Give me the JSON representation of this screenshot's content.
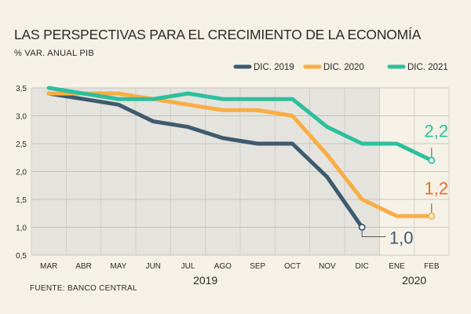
{
  "chart_data": {
    "type": "line",
    "title": "LAS PERSPECTIVAS PARA EL CRECIMIENTO DE LA ECONOMÍA",
    "subtitle": "% VAR. ANUAL PIB",
    "source": "FUENTE: BANCO CENTRAL",
    "categories": [
      "MAR",
      "ABR",
      "MAY",
      "JUN",
      "JUL",
      "AGO",
      "SEP",
      "OCT",
      "NOV",
      "DIC",
      "ENE",
      "FEB"
    ],
    "year_labels": [
      "2019",
      "2020"
    ],
    "ylim": [
      0.5,
      3.5
    ],
    "yticks": [
      "0,5",
      "1,0",
      "1,5",
      "2,0",
      "2,5",
      "3,0",
      "3,5"
    ],
    "ytick_values": [
      0.5,
      1.0,
      1.5,
      2.0,
      2.5,
      3.0,
      3.5
    ],
    "series": [
      {
        "name": "DIC. 2019",
        "color": "#3d5a6e",
        "values": [
          3.4,
          3.3,
          3.2,
          2.9,
          2.8,
          2.6,
          2.5,
          2.5,
          1.9,
          1.0,
          null,
          null
        ],
        "end_label": "1,0",
        "end_label_color": "#3d5a6e"
      },
      {
        "name": "DIC. 2020",
        "color": "#f9ad43",
        "values": [
          3.4,
          3.4,
          3.4,
          3.3,
          3.2,
          3.1,
          3.1,
          3.0,
          2.3,
          1.5,
          1.2,
          1.2
        ],
        "end_label": "1,2",
        "end_label_color": "#ec6a2b"
      },
      {
        "name": "DIC. 2021",
        "color": "#2dbf9c",
        "values": [
          3.5,
          3.4,
          3.3,
          3.3,
          3.4,
          3.3,
          3.3,
          3.3,
          2.8,
          2.5,
          2.5,
          2.2
        ],
        "end_label": "2,2",
        "end_label_color": "#2dbf9c"
      }
    ],
    "shaded_region": {
      "from": "MAR",
      "to": "DIC",
      "color": "#e4e3dd"
    },
    "grid": true,
    "legend_position": "top-right"
  }
}
